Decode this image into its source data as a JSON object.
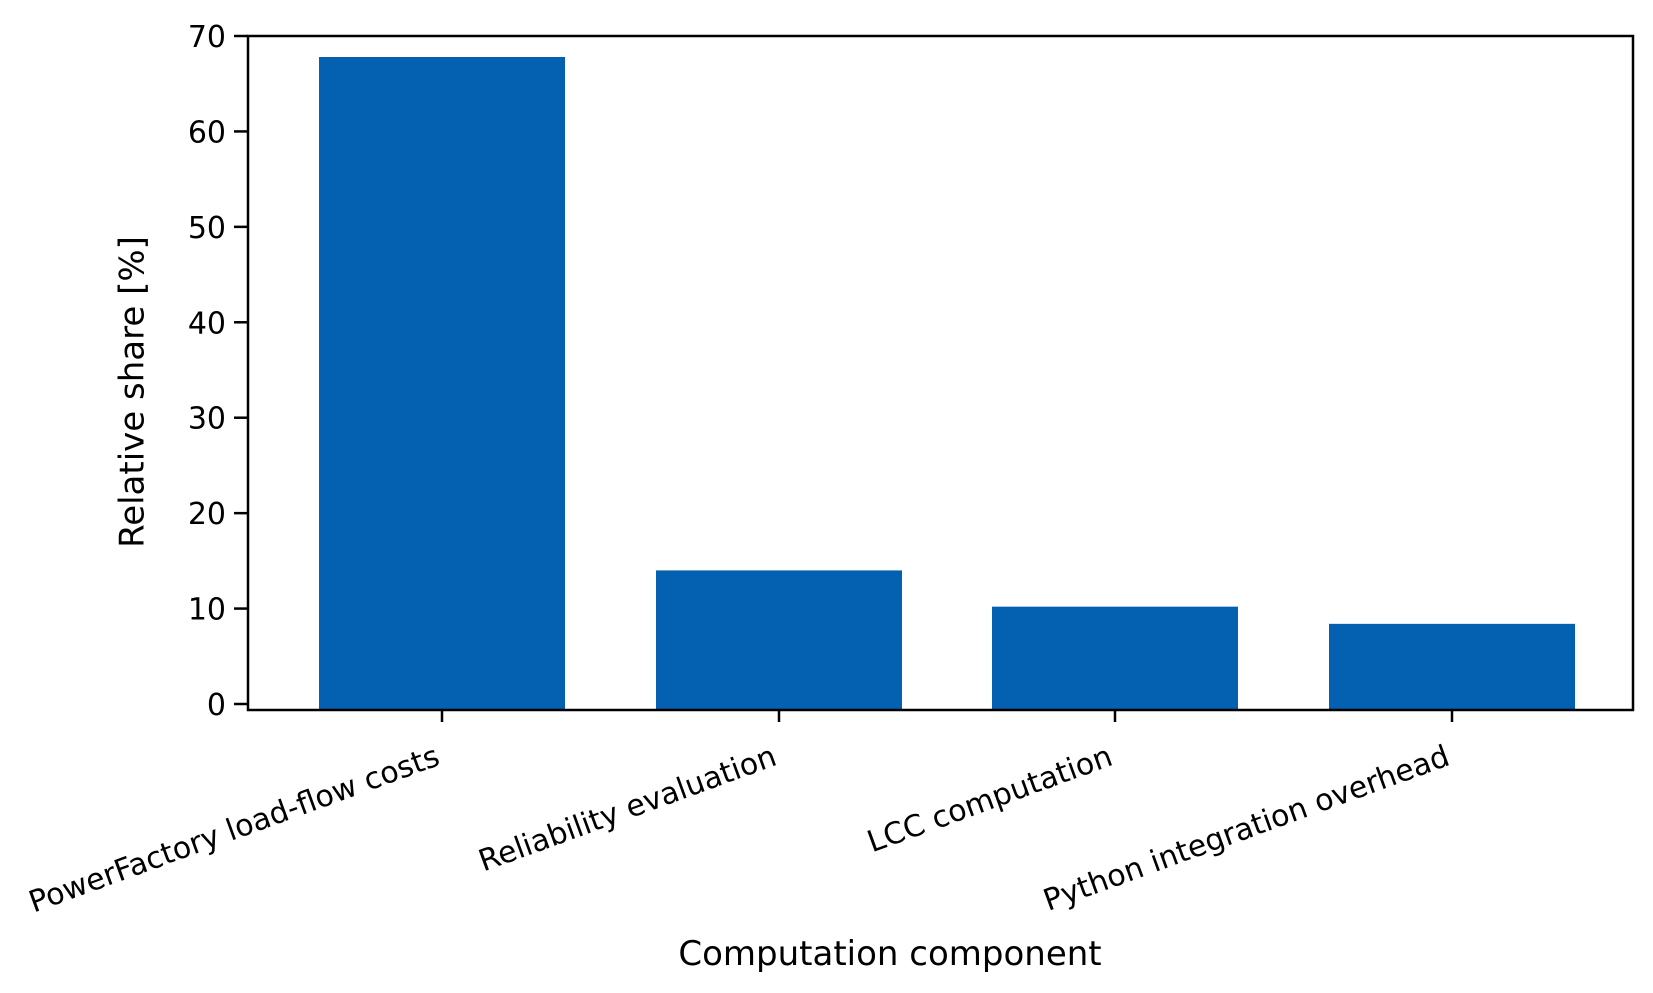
{
  "chart_data": {
    "type": "bar",
    "title": "",
    "xlabel": "Computation component",
    "ylabel": "Relative share [%]",
    "categories": [
      "PowerFactory load-flow costs",
      "Reliability evaluation",
      "LCC computation",
      "Python integration overhead"
    ],
    "values": [
      67.8,
      14.0,
      10.2,
      8.4
    ],
    "ylim": [
      0,
      70
    ],
    "yticks": [
      0,
      10,
      20,
      30,
      40,
      50,
      60,
      70
    ],
    "ytick_labels": [
      "0",
      "10",
      "20",
      "30",
      "40",
      "50",
      "60",
      "70"
    ],
    "grid": false,
    "legend": "none",
    "bar_color": "#0461b1"
  }
}
